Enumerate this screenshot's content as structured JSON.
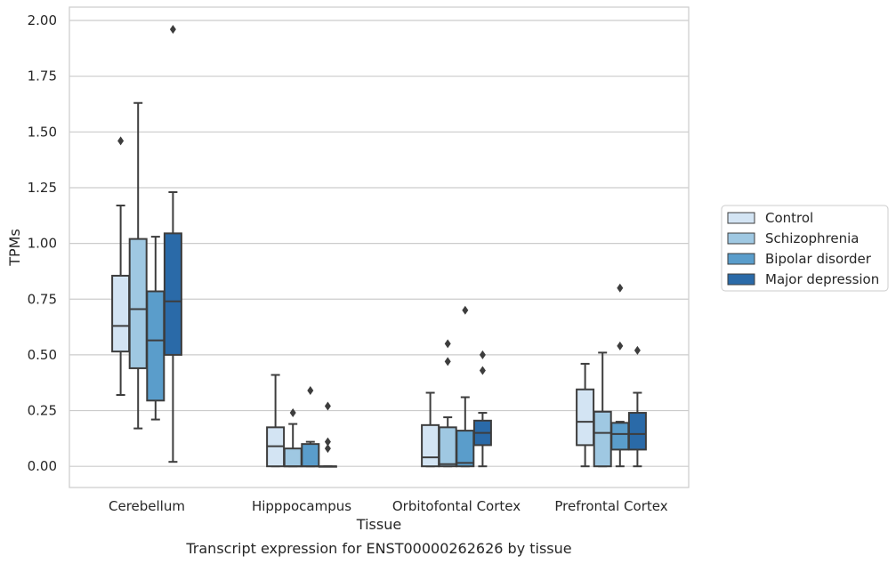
{
  "chart_data": {
    "type": "box",
    "xlabel": "Tissue",
    "ylabel": "TPMs",
    "caption": "Transcript expression for ENST00000262626 by tissue",
    "ylim": [
      -0.095,
      2.06
    ],
    "yticks": [
      "0.00",
      "0.25",
      "0.50",
      "0.75",
      "1.00",
      "1.25",
      "1.50",
      "1.75",
      "2.00"
    ],
    "grid": true,
    "legend_position": "right",
    "categories": [
      "Cerebellum",
      "Hipppocampus",
      "Orbitofontal Cortex",
      "Prefrontal Cortex"
    ],
    "series": [
      {
        "name": "Control",
        "color": "#d3e4f3",
        "boxes": [
          {
            "whislo": 0.32,
            "q1": 0.515,
            "med": 0.63,
            "q3": 0.855,
            "whishi": 1.17,
            "fliers": [
              1.46
            ]
          },
          {
            "whislo": 0.0,
            "q1": 0.0,
            "med": 0.09,
            "q3": 0.175,
            "whishi": 0.41,
            "fliers": []
          },
          {
            "whislo": 0.0,
            "q1": 0.0,
            "med": 0.04,
            "q3": 0.185,
            "whishi": 0.33,
            "fliers": []
          },
          {
            "whislo": 0.0,
            "q1": 0.095,
            "med": 0.2,
            "q3": 0.345,
            "whishi": 0.46,
            "fliers": []
          }
        ]
      },
      {
        "name": "Schizophrenia",
        "color": "#9fc8e2",
        "boxes": [
          {
            "whislo": 0.17,
            "q1": 0.44,
            "med": 0.705,
            "q3": 1.02,
            "whishi": 1.63,
            "fliers": []
          },
          {
            "whislo": 0.0,
            "q1": 0.0,
            "med": 0.0,
            "q3": 0.08,
            "whishi": 0.19,
            "fliers": [
              0.24
            ]
          },
          {
            "whislo": 0.0,
            "q1": 0.0,
            "med": 0.01,
            "q3": 0.175,
            "whishi": 0.22,
            "fliers": [
              0.47,
              0.55
            ]
          },
          {
            "whislo": 0.0,
            "q1": 0.0,
            "med": 0.15,
            "q3": 0.245,
            "whishi": 0.51,
            "fliers": []
          }
        ]
      },
      {
        "name": "Bipolar disorder",
        "color": "#5a9dcb",
        "boxes": [
          {
            "whislo": 0.21,
            "q1": 0.295,
            "med": 0.565,
            "q3": 0.785,
            "whishi": 1.03,
            "fliers": []
          },
          {
            "whislo": 0.0,
            "q1": 0.0,
            "med": 0.0,
            "q3": 0.1,
            "whishi": 0.11,
            "fliers": [
              0.34
            ]
          },
          {
            "whislo": 0.0,
            "q1": 0.0,
            "med": 0.015,
            "q3": 0.16,
            "whishi": 0.31,
            "fliers": [
              0.7
            ]
          },
          {
            "whislo": 0.0,
            "q1": 0.075,
            "med": 0.145,
            "q3": 0.195,
            "whishi": 0.2,
            "fliers": [
              0.54,
              0.8
            ]
          }
        ]
      },
      {
        "name": "Major depression",
        "color": "#2a6aa8",
        "boxes": [
          {
            "whislo": 0.02,
            "q1": 0.5,
            "med": 0.74,
            "q3": 1.045,
            "whishi": 1.23,
            "fliers": [
              1.96
            ]
          },
          {
            "whislo": 0.0,
            "q1": 0.0,
            "med": 0.0,
            "q3": 0.0,
            "whishi": 0.0,
            "fliers": [
              0.08,
              0.11,
              0.27
            ]
          },
          {
            "whislo": 0.0,
            "q1": 0.095,
            "med": 0.15,
            "q3": 0.205,
            "whishi": 0.24,
            "fliers": [
              0.43,
              0.5
            ]
          },
          {
            "whislo": 0.0,
            "q1": 0.075,
            "med": 0.145,
            "q3": 0.24,
            "whishi": 0.33,
            "fliers": [
              0.52
            ]
          }
        ]
      }
    ]
  }
}
